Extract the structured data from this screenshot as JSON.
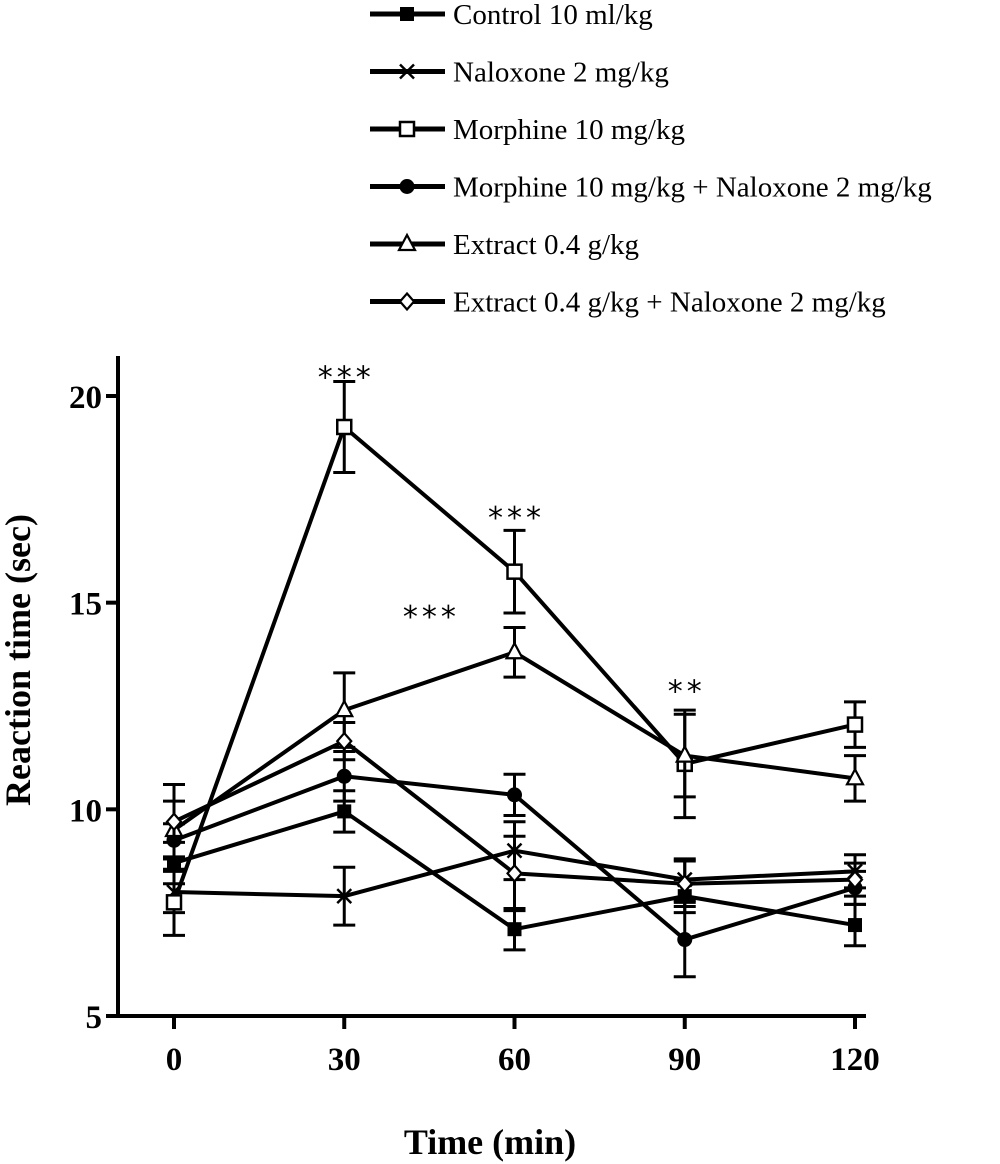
{
  "chart_data": {
    "type": "line",
    "xlabel": "Time (min)",
    "ylabel": "Reaction time (sec)",
    "x": [
      0,
      30,
      60,
      90,
      120
    ],
    "x_tick_labels": [
      "0",
      "30",
      "60",
      "90",
      "120"
    ],
    "ylim": [
      5,
      21
    ],
    "y_ticks": [
      5,
      10,
      15,
      20
    ],
    "y_tick_labels": [
      "5",
      "10",
      "15",
      "20"
    ],
    "grid": false,
    "legend_position": "top",
    "series": [
      {
        "name": "Control 10 ml/kg",
        "marker": "filled-square",
        "values": [
          8.7,
          9.95,
          7.1,
          7.9,
          7.2
        ],
        "errors": [
          0.5,
          0.5,
          0.5,
          0.4,
          0.5
        ]
      },
      {
        "name": "Naloxone 2 mg/kg",
        "marker": "x",
        "values": [
          8.0,
          7.9,
          9.0,
          8.3,
          8.5
        ],
        "errors": [
          0.5,
          0.7,
          0.7,
          0.5,
          0.4
        ]
      },
      {
        "name": "Morphine 10 mg/kg",
        "marker": "open-square",
        "values": [
          7.75,
          19.25,
          15.75,
          11.1,
          12.05
        ],
        "errors": [
          0.8,
          1.1,
          1.0,
          1.3,
          0.55
        ]
      },
      {
        "name": "Morphine 10 mg/kg + Naloxone 2 mg/kg",
        "marker": "filled-circle",
        "values": [
          9.25,
          10.8,
          10.35,
          6.85,
          8.1
        ],
        "errors": [
          0.4,
          0.6,
          0.5,
          0.9,
          0.4
        ]
      },
      {
        "name": "Extract 0.4 g/kg",
        "marker": "open-triangle",
        "values": [
          9.5,
          12.4,
          13.8,
          11.3,
          10.75
        ],
        "errors": [
          0.7,
          0.9,
          0.6,
          1.0,
          0.55
        ]
      },
      {
        "name": "Extract 0.4 g/kg + Naloxone 2 mg/kg",
        "marker": "open-diamond",
        "values": [
          9.7,
          11.65,
          8.45,
          8.2,
          8.3
        ],
        "errors": [
          0.9,
          0.45,
          0.9,
          0.55,
          0.4
        ]
      }
    ],
    "annotations": [
      {
        "text": "***",
        "x": 30,
        "y": 20.5
      },
      {
        "text": "***",
        "x": 60,
        "y": 17.1
      },
      {
        "text": "***",
        "x": 45,
        "y": 14.7
      },
      {
        "text": "**",
        "x": 90,
        "y": 12.9
      }
    ]
  }
}
